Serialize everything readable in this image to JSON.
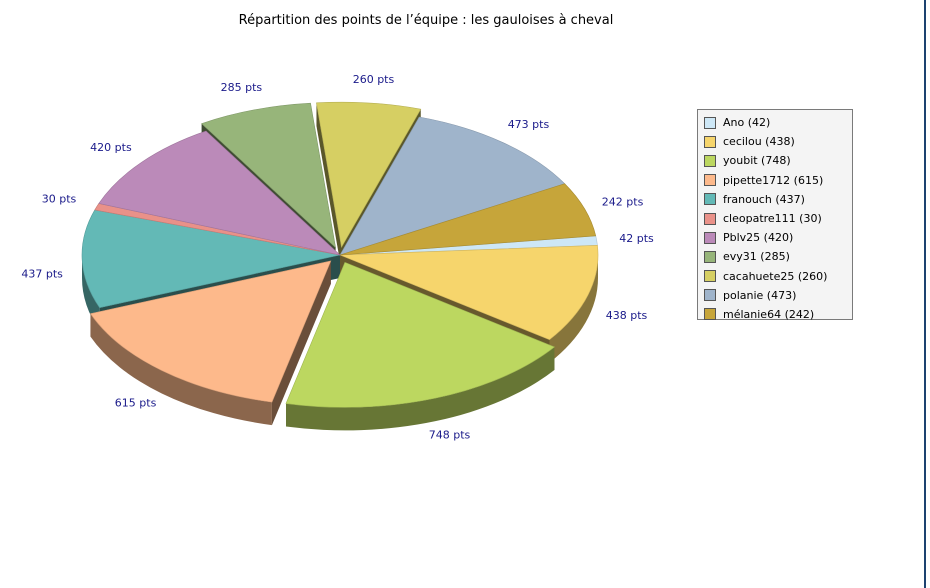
{
  "chart_data": {
    "type": "pie",
    "title": "Répartition des points de l’équipe : les gauloises à cheval",
    "slices": [
      {
        "name": "Ano",
        "value": 42,
        "legend": "Ano (42)",
        "label": "42 pts",
        "color": "#cde7f6"
      },
      {
        "name": "cecilou",
        "value": 438,
        "legend": "cecilou (438)",
        "label": "438 pts",
        "color": "#f6d56c"
      },
      {
        "name": "youbit",
        "value": 748,
        "legend": "youbit (748)",
        "label": "748 pts",
        "color": "#bcd760"
      },
      {
        "name": "pipette1712",
        "value": 615,
        "legend": "pipette1712 (615)",
        "label": "615 pts",
        "color": "#fdb98b"
      },
      {
        "name": "franouch",
        "value": 437,
        "legend": "franouch (437)",
        "label": "437 pts",
        "color": "#63b9b6"
      },
      {
        "name": "cleopatre111",
        "value": 30,
        "legend": "cleopatre111 (30)",
        "label": "30 pts",
        "color": "#e99189"
      },
      {
        "name": "Pblv25",
        "value": 420,
        "legend": "Pblv25 (420)",
        "label": "420 pts",
        "color": "#bb8ab9"
      },
      {
        "name": "evy31",
        "value": 285,
        "legend": "evy31 (285)",
        "label": "285 pts",
        "color": "#97b57a"
      },
      {
        "name": "cacahuete25",
        "value": 260,
        "legend": "cacahuete25 (260)",
        "label": "260 pts",
        "color": "#d6cf63"
      },
      {
        "name": "polanie",
        "value": 473,
        "legend": "polanie (473)",
        "label": "473 pts",
        "color": "#9fb4cb"
      },
      {
        "name": "mélanie64",
        "value": 242,
        "legend": "mélanie64 (242)",
        "label": "242 pts",
        "color": "#c6a53a"
      }
    ],
    "exploded": [
      "youbit",
      "pipette1712",
      "evy31",
      "cacahuete25"
    ],
    "legend_position": "right",
    "style": "3d-exploded-pie"
  }
}
